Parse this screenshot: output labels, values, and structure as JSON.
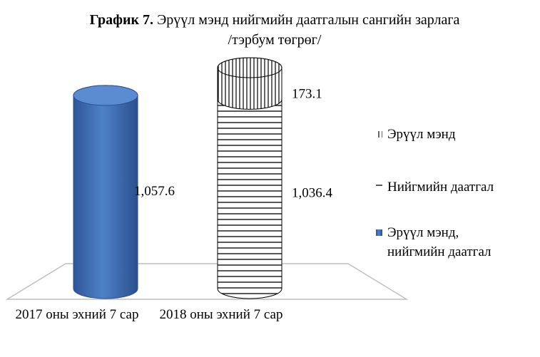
{
  "chart_data": {
    "type": "cylinder",
    "title_label": "График 7.",
    "title": "Эрүүл мэнд нийгмийн даатгалын сангийн зарлага /тэрбум төгрөг/",
    "categories": [
      "2017 оны эхний 7 сар",
      "2018 оны эхний 7 сар"
    ],
    "stacked": true,
    "series": [
      {
        "name": "Эрүүл мэнд",
        "color": "#000000",
        "pattern": "vertical",
        "values": [
          null,
          173.1
        ],
        "value_labels": [
          null,
          "173.1"
        ]
      },
      {
        "name": "Нийгмийн даатгал",
        "color": "#000000",
        "pattern": "horizontal",
        "values": [
          null,
          1036.4
        ],
        "value_labels": [
          null,
          "1,036.4"
        ]
      },
      {
        "name": "Эрүүл мэнд, нийгмийн даатгал",
        "color": "#4472c4",
        "pattern": "solid",
        "values": [
          1057.6,
          null
        ],
        "value_labels": [
          "1,057.6",
          null
        ]
      }
    ],
    "legend": "right"
  }
}
